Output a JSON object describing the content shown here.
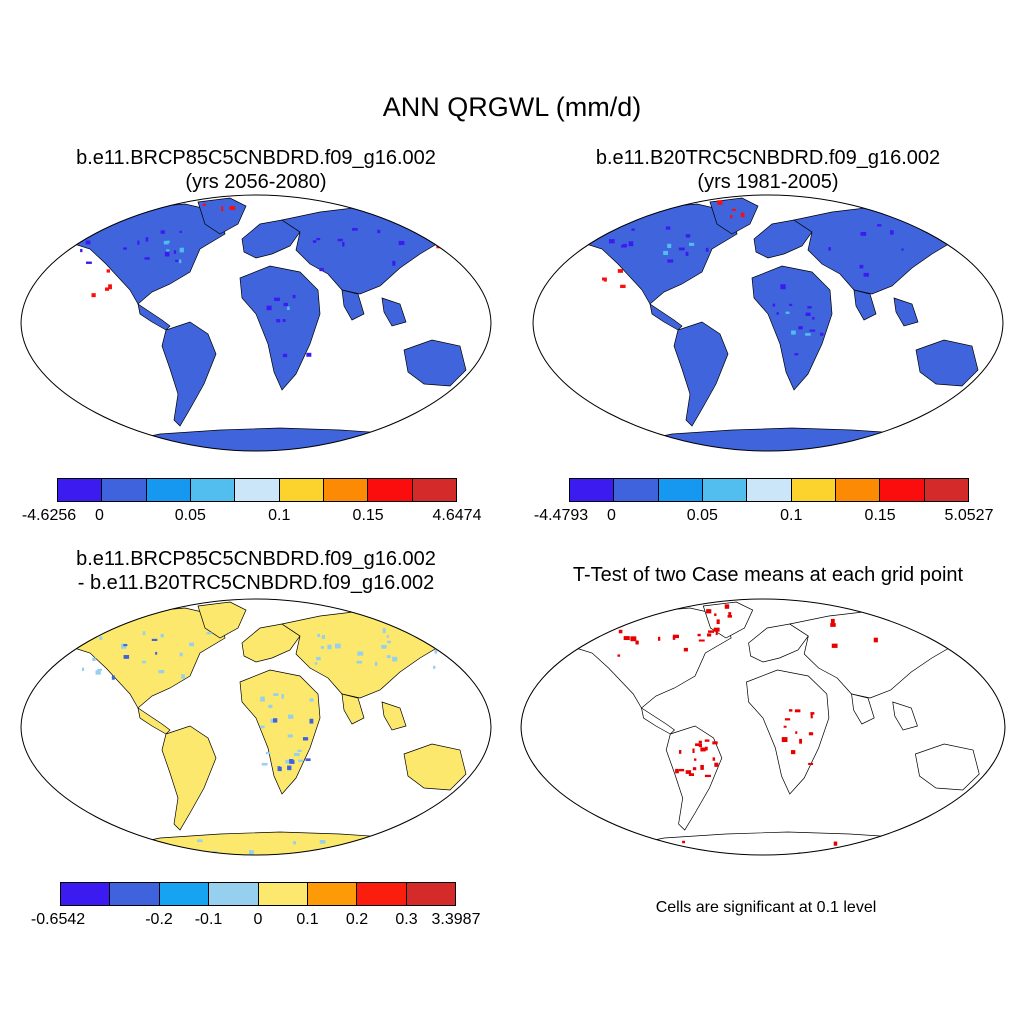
{
  "title": "ANN QRGWL (mm/d)",
  "panels": [
    {
      "title_line1": "b.e11.BRCP85C5CNBDRD.f09_g16.002",
      "title_line2": "(yrs 2056-2080)",
      "land_color": "#3f64dc",
      "colorbar": {
        "colors": [
          "#3b1bf0",
          "#3e63dd",
          "#1697f0",
          "#52bdef",
          "#cbe6f8",
          "#fcd22c",
          "#fc8a05",
          "#fb0d0d",
          "#d42a2a"
        ],
        "ticks": [
          "-4.6256",
          "0",
          "0.05",
          "0.1",
          "0.15",
          "4.6474"
        ]
      }
    },
    {
      "title_line1": "b.e11.B20TRC5CNBDRD.f09_g16.002",
      "title_line2": "(yrs 1981-2005)",
      "land_color": "#3f64dc",
      "colorbar": {
        "colors": [
          "#3b1bf0",
          "#3e63dd",
          "#1697f0",
          "#52bdef",
          "#cbe6f8",
          "#fcd22c",
          "#fc8a05",
          "#fb0d0d",
          "#d42a2a"
        ],
        "ticks": [
          "-4.4793",
          "0",
          "0.05",
          "0.1",
          "0.15",
          "5.0527"
        ]
      }
    },
    {
      "title_line1": "b.e11.BRCP85C5CNBDRD.f09_g16.002",
      "title_line2": "- b.e11.B20TRC5CNBDRD.f09_g16.002",
      "land_color": "#fbe86c",
      "colorbar": {
        "colors": [
          "#3b1bf0",
          "#3e63dd",
          "#16a3f2",
          "#97cfee",
          "#fbe86c",
          "#fc9a08",
          "#fb1e0e",
          "#d42a2a"
        ],
        "ticks": [
          "-0.6542",
          "-0.2",
          "-0.1",
          "0",
          "0.1",
          "0.2",
          "0.3",
          "3.3987"
        ]
      }
    },
    {
      "title_line1": "T-Test of two Case means at each grid point",
      "note": "Cells are significant at 0.1 level",
      "land_color": "#ffffff",
      "signif_color": "#e80000"
    }
  ]
}
